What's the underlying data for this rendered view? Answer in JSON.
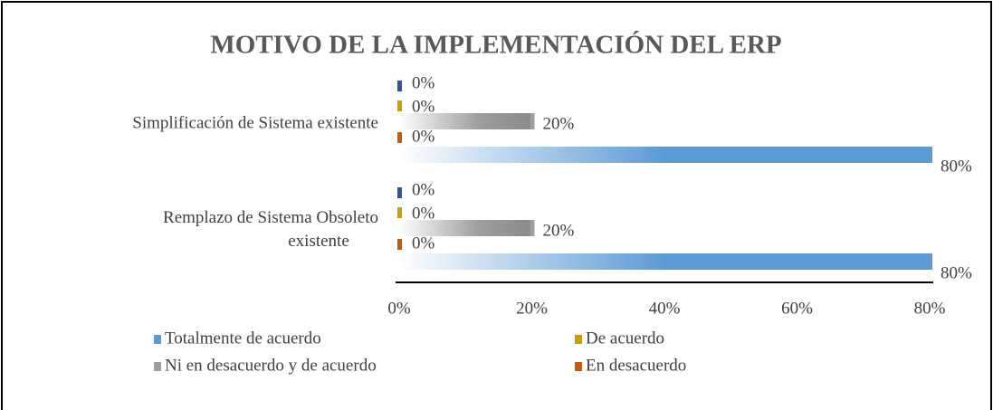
{
  "chart_data": {
    "type": "hbar",
    "title": "MOTIVO DE LA IMPLEMENTACIÓN DEL ERP",
    "categories": [
      "Simplificación de Sistema existente",
      "Remplazo de Sistema Obsoleto existente"
    ],
    "series": [
      {
        "color": "#2f5597",
        "values": [
          0,
          0
        ],
        "value_labels": [
          "0%",
          "0%"
        ]
      },
      {
        "name": "De acuerdo",
        "color": "#c9a000",
        "values": [
          0,
          0
        ],
        "value_labels": [
          "0%",
          "0%"
        ]
      },
      {
        "name": "Ni en desacuerdo y de acuerdo",
        "color": "#9e9e9e",
        "values": [
          20,
          20
        ],
        "value_labels": [
          "20%",
          "20%"
        ]
      },
      {
        "name": "En desacuerdo",
        "color": "#c55a11",
        "values": [
          0,
          0
        ],
        "value_labels": [
          "0%",
          "0%"
        ]
      },
      {
        "name": "Totalmente de acuerdo",
        "color": "#5b9bd5",
        "values": [
          80,
          80
        ],
        "value_labels": [
          "80%",
          "80%"
        ]
      }
    ],
    "legend_order": [
      4,
      1,
      2,
      3
    ],
    "xlim": [
      0,
      80
    ],
    "xticks": [
      {
        "value": 0,
        "label": "0%"
      },
      {
        "value": 20,
        "label": "20%"
      },
      {
        "value": 40,
        "label": "40%"
      },
      {
        "value": 60,
        "label": "60%"
      },
      {
        "value": 80,
        "label": "80%"
      }
    ],
    "grid": false
  }
}
